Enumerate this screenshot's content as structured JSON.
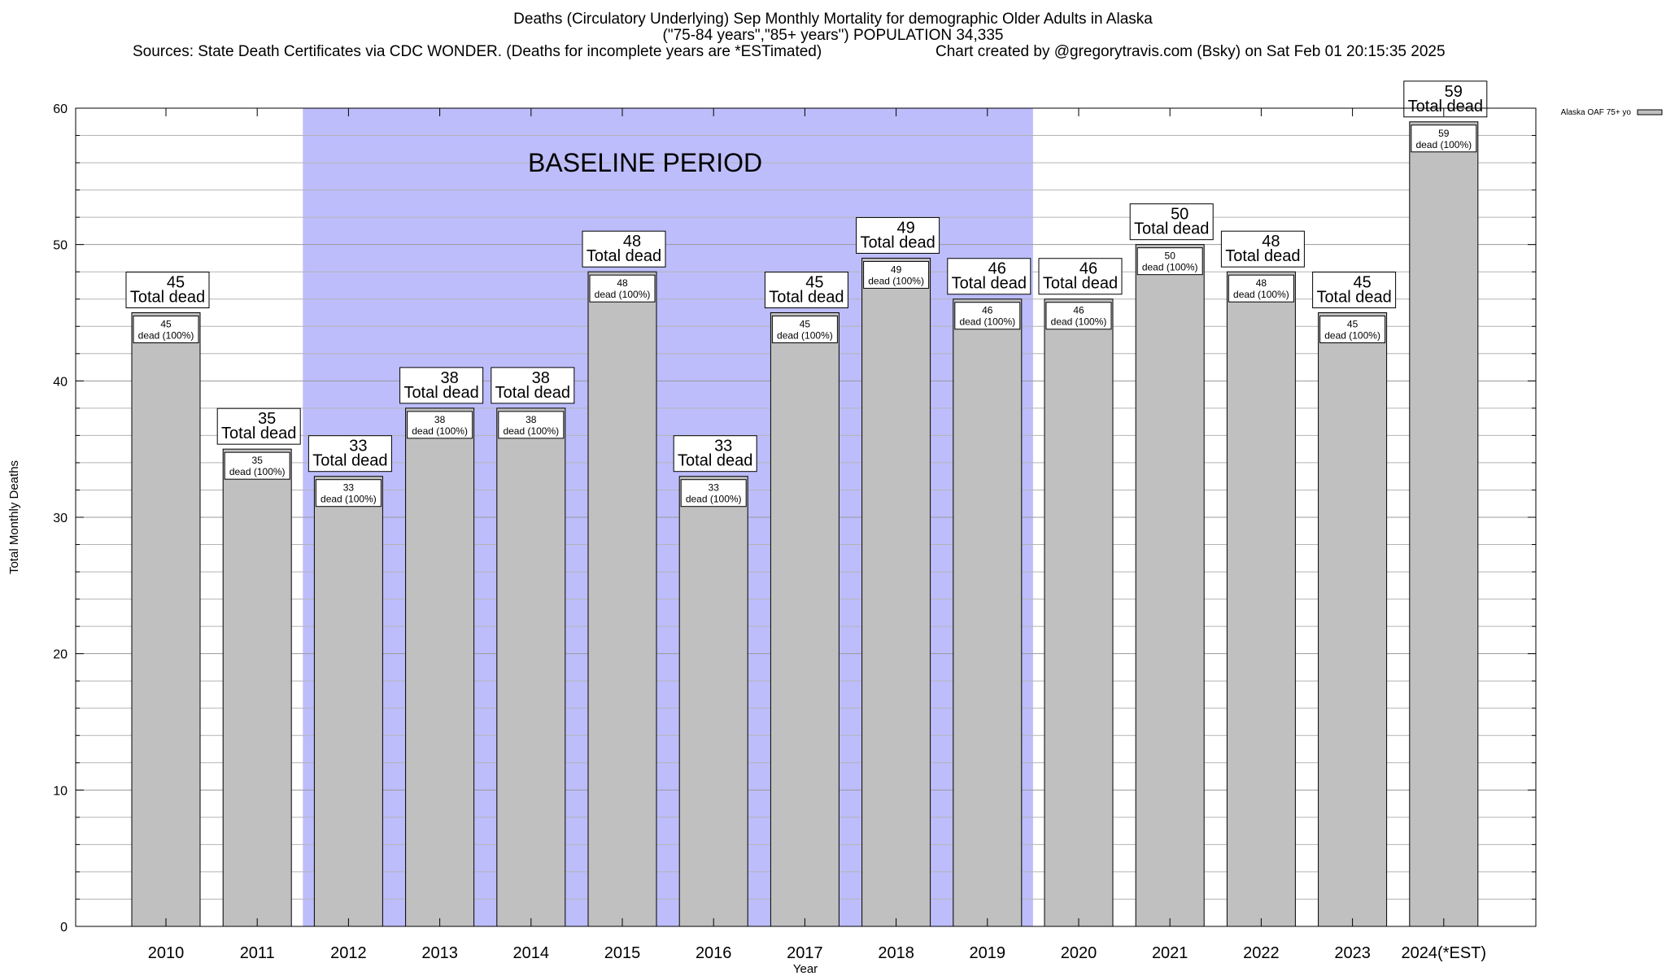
{
  "header": {
    "title_line1": "Deaths (Circulatory Underlying) Sep Monthly Mortality for demographic Older Adults in Alaska",
    "title_line2": "(\"75-84 years\",\"85+ years\") POPULATION 34,335",
    "sources": "Sources: State Death Certificates via CDC WONDER. (Deaths for incomplete years are *ESTimated)",
    "credit": "Chart created by @gregorytravis.com (Bsky) on Sat Feb 01 20:15:35 2025"
  },
  "colors": {
    "bar_fill": "#c0c0c0",
    "baseline_shade": "#bdbdfc",
    "grid": "#b4b4b4"
  },
  "chart_data": {
    "type": "bar",
    "categories": [
      "2010",
      "2011",
      "2012",
      "2013",
      "2014",
      "2015",
      "2016",
      "2017",
      "2018",
      "2019",
      "2020",
      "2021",
      "2022",
      "2023",
      "2024(*EST)"
    ],
    "series": [
      {
        "name": "Alaska OAF 75+ yo",
        "values": [
          45,
          35,
          33,
          38,
          38,
          48,
          33,
          45,
          49,
          46,
          46,
          50,
          48,
          45,
          59
        ]
      }
    ],
    "total_label_suffix": "Total dead",
    "inner_label_suffix": "dead (100%)",
    "xlabel": "Year",
    "ylabel": "Total Monthly Deaths",
    "ylim": [
      0,
      60
    ],
    "yticks": [
      0,
      10,
      20,
      30,
      40,
      50,
      60
    ],
    "minor_grid_step": 2,
    "baseline_period": {
      "label": "BASELINE PERIOD",
      "from_category": "2012",
      "to_category": "2019"
    },
    "grid": true,
    "legend_position": "top-right"
  }
}
